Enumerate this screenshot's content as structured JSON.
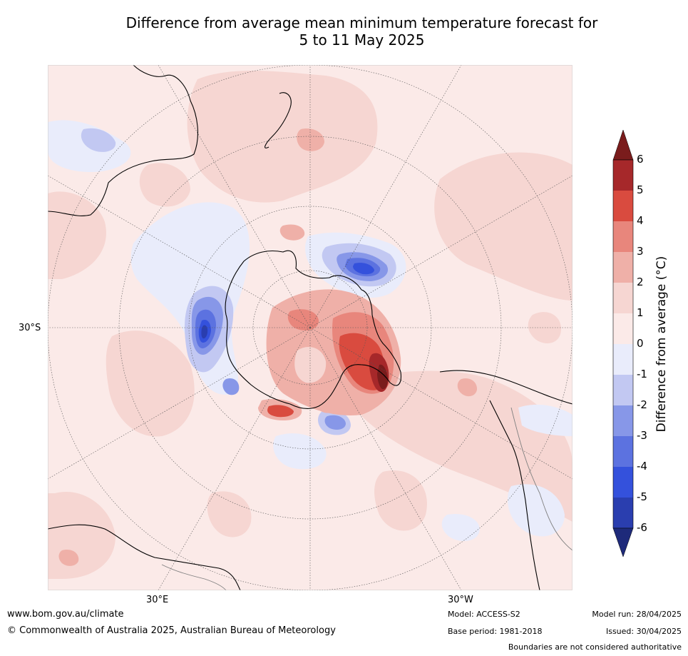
{
  "title": {
    "line1": "Difference from average mean minimum temperature forecast for",
    "line2": "5 to 11 May 2025"
  },
  "map": {
    "projection": "south-polar-stereographic",
    "lat_labels": [
      "30°S"
    ],
    "lon_labels": [
      "30°E",
      "30°W"
    ],
    "colors": {
      "ocean_base": "#fbeae8",
      "land_base": "#fbeae8",
      "coastline": "#000000",
      "borders": "#808080",
      "graticule": "#555555"
    }
  },
  "colorbar": {
    "label": "Difference from average (°C)",
    "ticks": [
      "6",
      "5",
      "4",
      "3",
      "2",
      "1",
      "0",
      "-1",
      "-2",
      "-3",
      "-4",
      "-5",
      "-6"
    ],
    "bins": [
      {
        "range": "5 to 6",
        "color": "#a6282a"
      },
      {
        "range": "4 to 5",
        "color": "#d94b3f"
      },
      {
        "range": "3 to 4",
        "color": "#e8867c"
      },
      {
        "range": "2 to 3",
        "color": "#efb0a8"
      },
      {
        "range": "1 to 2",
        "color": "#f6d6d2"
      },
      {
        "range": "0 to 1",
        "color": "#fbeae8"
      },
      {
        "range": "-1 to 0",
        "color": "#e9ecfb"
      },
      {
        "range": "-2 to -1",
        "color": "#c2c8f2"
      },
      {
        "range": "-3 to -2",
        "color": "#8797e8"
      },
      {
        "range": "-4 to -3",
        "color": "#5c72e0"
      },
      {
        "range": "-5 to -4",
        "color": "#3451dc"
      },
      {
        "range": "-6 to -5",
        "color": "#2a3eaf"
      }
    ],
    "over_color": "#7a1c1c",
    "under_color": "#1e2a7a"
  },
  "footer": {
    "website": "www.bom.gov.au/climate",
    "copyright": "© Commonwealth of Australia 2025, Australian Bureau of Meteorology",
    "model": "Model: ACCESS-S2",
    "base_period": "Base period: 1981-2018",
    "model_run": "Model run: 28/04/2025",
    "issued": "Issued: 30/04/2025",
    "disclaimer": "Boundaries are not considered authoritative"
  }
}
